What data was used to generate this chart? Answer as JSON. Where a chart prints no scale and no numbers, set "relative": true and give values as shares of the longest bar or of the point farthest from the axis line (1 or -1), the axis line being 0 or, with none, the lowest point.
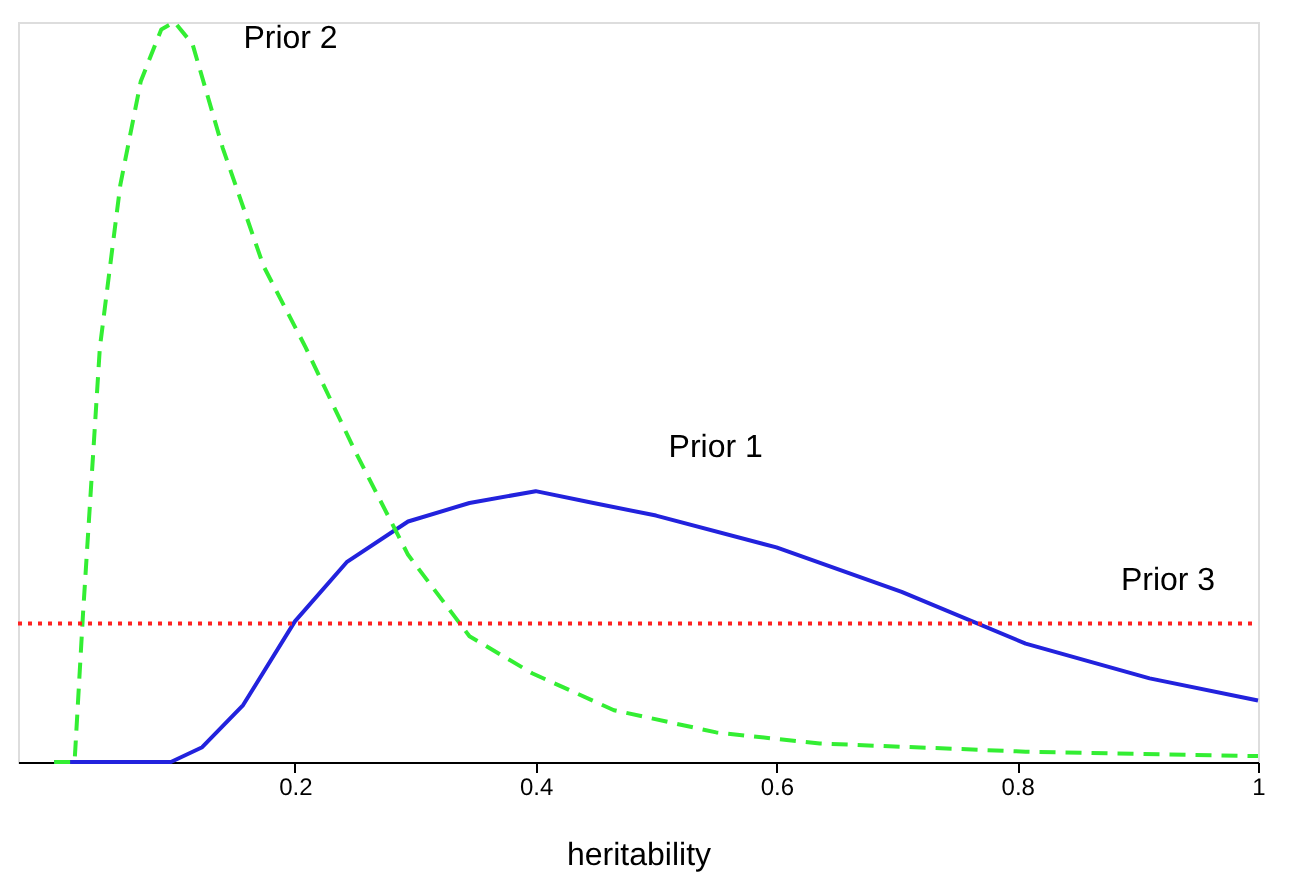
{
  "chart_data": {
    "type": "line",
    "xlabel": "heritability",
    "relative": true,
    "xlim": [
      -0.03,
      1
    ],
    "xticks": [
      0.2,
      0.4,
      0.6,
      0.8,
      1
    ],
    "grid": false,
    "legend": false,
    "marker": "none",
    "series": [
      {
        "name": "Prior 1",
        "color": "#2222dd",
        "line_style": "solid",
        "x": [
          0,
          0.097,
          0.123,
          0.157,
          0.2,
          0.243,
          0.294,
          0.345,
          0.4,
          0.448,
          0.5,
          0.6,
          0.704,
          0.807,
          0.91,
          1
        ],
        "values": [
          0,
          0,
          0.02,
          0.077,
          0.19,
          0.27,
          0.325,
          0.35,
          0.366,
          0.35,
          0.333,
          0.29,
          0.23,
          0.16,
          0.113,
          0.083
        ]
      },
      {
        "name": "Prior 2",
        "color": "#33ee33",
        "line_style": "dashed",
        "x": [
          0,
          0.017,
          0.024,
          0.038,
          0.055,
          0.072,
          0.089,
          0.1,
          0.115,
          0.14,
          0.174,
          0.209,
          0.25,
          0.294,
          0.345,
          0.397,
          0.465,
          0.55,
          0.636,
          0.807,
          1
        ],
        "values": [
          0,
          0,
          0.2,
          0.56,
          0.78,
          0.92,
          0.99,
          1,
          0.97,
          0.83,
          0.67,
          0.56,
          0.42,
          0.28,
          0.17,
          0.12,
          0.07,
          0.04,
          0.025,
          0.014,
          0.008
        ]
      },
      {
        "name": "Prior 3",
        "color": "#ff2222",
        "line_style": "dotted",
        "x": [
          -0.03,
          1
        ],
        "values": [
          0.187,
          0.187
        ]
      }
    ]
  }
}
